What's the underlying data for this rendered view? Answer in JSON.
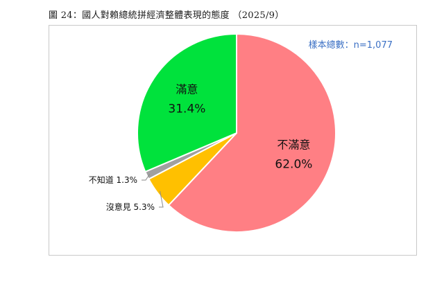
{
  "figure": {
    "title": "圖 24：國人對賴總統拼經濟整體表現的態度 （2025/9）",
    "sample_size": "樣本總數：n=1,077"
  },
  "chart_data": {
    "type": "pie",
    "start_angle_deg": 0,
    "direction": "clockwise",
    "slices": [
      {
        "label": "不滿意",
        "value": 62.0,
        "value_text": "62.0%",
        "color": "#ff7f84",
        "label_position": "inside"
      },
      {
        "label": "沒意見",
        "value": 5.3,
        "value_text": "5.3%",
        "color": "#ffc000",
        "label_position": "outside"
      },
      {
        "label": "不知道",
        "value": 1.3,
        "value_text": "1.3%",
        "color": "#a0a0a0",
        "label_position": "outside"
      },
      {
        "label": "滿意",
        "value": 31.4,
        "value_text": "31.4%",
        "color": "#00e23c",
        "label_position": "inside"
      }
    ],
    "legend": "none"
  }
}
